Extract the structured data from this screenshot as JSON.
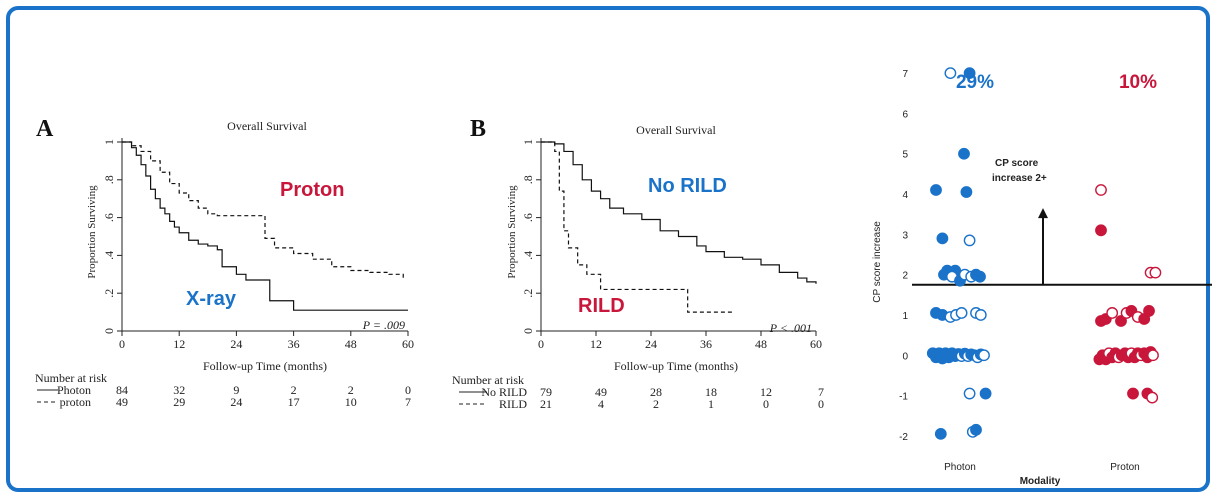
{
  "colors": {
    "border": "#1a73c9",
    "blue": "#1a73c9",
    "red": "#c8173b",
    "ink": "#222222"
  },
  "chart_data": [
    {
      "type": "line",
      "panel": "A",
      "title": "Overall Survival",
      "xlabel": "Follow-up Time (months)",
      "ylabel": "Proportion Surviving",
      "xlim": [
        0,
        60
      ],
      "ylim": [
        0,
        1
      ],
      "xticks": [
        "0",
        "12",
        "24",
        "36",
        "48",
        "60"
      ],
      "yticks": [
        "0",
        ".2",
        ".4",
        ".6",
        ".8",
        "1"
      ],
      "pvalue": "P = .009",
      "series": [
        {
          "name": "X-ray",
          "style": "solid",
          "x": [
            0,
            2,
            3,
            4,
            5,
            6,
            7,
            8,
            9,
            10,
            11,
            12,
            14,
            16,
            18,
            20,
            21,
            24,
            26,
            28,
            31,
            33,
            36,
            48,
            60
          ],
          "y": [
            1.0,
            0.97,
            0.93,
            0.88,
            0.82,
            0.75,
            0.7,
            0.65,
            0.62,
            0.58,
            0.55,
            0.52,
            0.48,
            0.46,
            0.45,
            0.43,
            0.34,
            0.3,
            0.27,
            0.27,
            0.16,
            0.16,
            0.11,
            0.11,
            0.11
          ]
        },
        {
          "name": "Proton",
          "style": "dashed",
          "x": [
            0,
            2,
            4,
            6,
            8,
            10,
            12,
            14,
            16,
            18,
            20,
            24,
            30,
            32,
            36,
            40,
            44,
            48,
            52,
            56,
            59
          ],
          "y": [
            1.0,
            0.98,
            0.95,
            0.9,
            0.84,
            0.78,
            0.73,
            0.69,
            0.65,
            0.62,
            0.61,
            0.61,
            0.49,
            0.44,
            0.41,
            0.38,
            0.34,
            0.32,
            0.31,
            0.3,
            0.27
          ]
        }
      ],
      "annotations": [
        "Proton",
        "X-ray"
      ],
      "risk_table": {
        "header": "Number at risk",
        "rows": [
          {
            "label": "Photon",
            "style": "solid",
            "values": [
              "84",
              "32",
              "9",
              "2",
              "2",
              "0"
            ]
          },
          {
            "label": "proton",
            "style": "dashed",
            "values": [
              "49",
              "29",
              "24",
              "17",
              "10",
              "7"
            ]
          }
        ]
      }
    },
    {
      "type": "line",
      "panel": "B",
      "title": "Overall Survival",
      "xlabel": "Follow-up Time (months)",
      "ylabel": "Proportion Surviving",
      "xlim": [
        0,
        60
      ],
      "ylim": [
        0,
        1
      ],
      "xticks": [
        "0",
        "12",
        "24",
        "36",
        "48",
        "60"
      ],
      "yticks": [
        "0",
        ".2",
        ".4",
        ".6",
        ".8",
        "1"
      ],
      "pvalue": "P < .001",
      "series": [
        {
          "name": "No RILD",
          "style": "solid",
          "x": [
            0,
            3,
            5,
            7,
            9,
            11,
            13,
            15,
            18,
            22,
            26,
            30,
            34,
            36,
            40,
            44,
            48,
            52,
            56,
            58,
            60
          ],
          "y": [
            1.0,
            0.99,
            0.95,
            0.88,
            0.8,
            0.74,
            0.7,
            0.65,
            0.62,
            0.59,
            0.53,
            0.5,
            0.45,
            0.42,
            0.39,
            0.38,
            0.35,
            0.31,
            0.28,
            0.26,
            0.25
          ]
        },
        {
          "name": "RILD",
          "style": "dashed",
          "x": [
            0,
            3,
            4,
            5,
            6,
            8,
            10,
            13,
            20,
            24,
            30,
            32,
            34,
            38,
            42
          ],
          "y": [
            1.0,
            0.95,
            0.74,
            0.53,
            0.44,
            0.35,
            0.3,
            0.22,
            0.22,
            0.22,
            0.22,
            0.1,
            0.1,
            0.1,
            0.1
          ]
        }
      ],
      "annotations": [
        "No RILD",
        "RILD"
      ],
      "risk_table": {
        "header": "Number at risk",
        "rows": [
          {
            "label": "No RILD",
            "style": "solid",
            "values": [
              "79",
              "49",
              "28",
              "18",
              "12",
              "7"
            ]
          },
          {
            "label": "RILD",
            "style": "dashed",
            "values": [
              "21",
              "4",
              "2",
              "1",
              "0",
              "0"
            ]
          }
        ]
      }
    },
    {
      "type": "scatter",
      "panel": "C",
      "xlabel": "Modality",
      "ylabel": "CP score increase",
      "categories": [
        "Photon",
        "Proton"
      ],
      "ylim": [
        -2.4,
        7.4
      ],
      "yticks": [
        "-2",
        "-1",
        "0",
        "1",
        "2",
        "3",
        "4",
        "5",
        "6",
        "7"
      ],
      "threshold": 1.75,
      "annotation": [
        "CP score",
        "increase 2+"
      ],
      "percentages": [
        {
          "category": "Photon",
          "text": "29%"
        },
        {
          "category": "Proton",
          "text": "10%"
        }
      ],
      "series": [
        {
          "name": "Photon",
          "color": "#1a73c9",
          "points": [
            [
              -0.12,
              7.0,
              0
            ],
            [
              0.12,
              7.0,
              1
            ],
            [
              0.05,
              5.0,
              1
            ],
            [
              -0.3,
              4.1,
              1
            ],
            [
              0.08,
              4.05,
              1
            ],
            [
              -0.22,
              2.9,
              1
            ],
            [
              0.12,
              2.85,
              0
            ],
            [
              -0.2,
              2.0,
              1
            ],
            [
              -0.16,
              2.1,
              1
            ],
            [
              -0.12,
              2.05,
              1
            ],
            [
              -0.06,
              2.1,
              1
            ],
            [
              -0.1,
              1.95,
              0
            ],
            [
              0.0,
              1.85,
              1
            ],
            [
              0.06,
              2.0,
              0
            ],
            [
              0.14,
              1.95,
              0
            ],
            [
              0.2,
              2.0,
              1
            ],
            [
              0.25,
              1.95,
              1
            ],
            [
              -0.3,
              1.05,
              1
            ],
            [
              -0.22,
              1.0,
              1
            ],
            [
              -0.12,
              0.95,
              0
            ],
            [
              -0.05,
              1.0,
              0
            ],
            [
              0.02,
              1.05,
              0
            ],
            [
              0.2,
              1.05,
              0
            ],
            [
              0.26,
              1.0,
              0
            ],
            [
              -0.34,
              0.05,
              1
            ],
            [
              -0.3,
              -0.05,
              1
            ],
            [
              -0.26,
              0.05,
              1
            ],
            [
              -0.22,
              -0.08,
              1
            ],
            [
              -0.18,
              0.05,
              1
            ],
            [
              -0.14,
              -0.05,
              1
            ],
            [
              -0.1,
              0.05,
              1
            ],
            [
              -0.06,
              -0.02,
              1
            ],
            [
              -0.02,
              0.03,
              1
            ],
            [
              0.02,
              -0.02,
              0
            ],
            [
              0.06,
              0.04,
              1
            ],
            [
              0.1,
              -0.02,
              0
            ],
            [
              0.14,
              0.02,
              1
            ],
            [
              0.18,
              0.0,
              1
            ],
            [
              0.22,
              -0.05,
              0
            ],
            [
              0.26,
              0.02,
              1
            ],
            [
              0.3,
              0.0,
              0
            ],
            [
              0.12,
              -0.95,
              0
            ],
            [
              0.32,
              -0.95,
              1
            ],
            [
              -0.24,
              -1.95,
              1
            ],
            [
              0.16,
              -1.9,
              0
            ],
            [
              0.2,
              -1.85,
              1
            ]
          ]
        },
        {
          "name": "Proton",
          "color": "#c8173b",
          "points": [
            [
              -0.3,
              4.1,
              0
            ],
            [
              -0.3,
              3.1,
              1
            ],
            [
              0.32,
              2.05,
              0
            ],
            [
              0.38,
              2.05,
              0
            ],
            [
              -0.3,
              0.85,
              1
            ],
            [
              -0.24,
              0.9,
              1
            ],
            [
              -0.16,
              1.05,
              0
            ],
            [
              -0.05,
              0.85,
              1
            ],
            [
              0.02,
              1.05,
              0
            ],
            [
              0.08,
              1.1,
              1
            ],
            [
              0.16,
              0.95,
              0
            ],
            [
              0.24,
              0.9,
              1
            ],
            [
              0.3,
              1.1,
              1
            ],
            [
              -0.32,
              -0.1,
              1
            ],
            [
              -0.28,
              0.0,
              1
            ],
            [
              -0.24,
              -0.1,
              1
            ],
            [
              -0.2,
              0.05,
              0
            ],
            [
              -0.16,
              -0.05,
              1
            ],
            [
              -0.12,
              0.05,
              1
            ],
            [
              -0.08,
              -0.05,
              0
            ],
            [
              -0.04,
              0.0,
              1
            ],
            [
              0.0,
              0.05,
              1
            ],
            [
              0.04,
              -0.05,
              1
            ],
            [
              0.08,
              0.05,
              0
            ],
            [
              0.12,
              -0.05,
              1
            ],
            [
              0.16,
              0.05,
              1
            ],
            [
              0.2,
              0.0,
              0
            ],
            [
              0.24,
              0.05,
              1
            ],
            [
              0.28,
              -0.05,
              1
            ],
            [
              0.32,
              0.08,
              1
            ],
            [
              0.35,
              0.0,
              0
            ],
            [
              0.1,
              -0.95,
              1
            ],
            [
              0.28,
              -0.95,
              1
            ],
            [
              0.34,
              -1.05,
              0
            ]
          ]
        }
      ]
    }
  ]
}
